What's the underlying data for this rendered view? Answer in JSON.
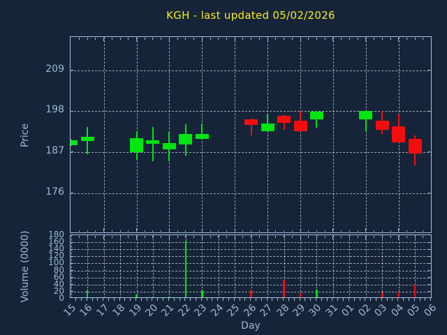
{
  "window": {
    "title": "KGH - last updated 05/02/2026"
  },
  "colors": {
    "background": "#16243a",
    "up": "#00e60f",
    "down": "#f50d0d",
    "frame": "#a6c2de",
    "text": "#9db9d5",
    "title": "#f6ec1e",
    "grid": "#c9ced8"
  },
  "chart_data": {
    "type": "candlestick",
    "title": "KGH - last updated 05/02/2026",
    "xlabel": "Day",
    "price_axis": {
      "label": "Price",
      "ticks": [
        176,
        187,
        198,
        209
      ],
      "ylim": [
        165,
        218
      ],
      "grid": true
    },
    "volume_axis": {
      "label": "Volume (0000)",
      "ticks": [
        0,
        20,
        40,
        60,
        80,
        100,
        120,
        140,
        160,
        180
      ],
      "ylim": [
        0,
        180
      ],
      "grid": true
    },
    "x_tick_labels": [
      "15",
      "16",
      "17",
      "18",
      "19",
      "20",
      "21",
      "22",
      "23",
      "24",
      "25",
      "26",
      "27",
      "28",
      "29",
      "30",
      "31",
      "01",
      "02",
      "03",
      "04",
      "05",
      "06"
    ],
    "price_grid_slots": [
      2,
      4,
      6,
      8,
      10,
      12,
      14,
      16,
      18,
      20,
      22
    ],
    "legend": "none",
    "candles": [
      {
        "day": "15",
        "slot": 0,
        "open": 188.8,
        "high": 190.3,
        "low": 188.7,
        "close": 190.2,
        "volume": 1,
        "dir": "up"
      },
      {
        "day": "16",
        "slot": 1,
        "open": 189.9,
        "high": 193.7,
        "low": 186.4,
        "close": 191.2,
        "volume": 26,
        "dir": "up"
      },
      {
        "day": "19",
        "slot": 4,
        "open": 187.0,
        "high": 192.7,
        "low": 184.9,
        "close": 190.8,
        "volume": 11,
        "dir": "up"
      },
      {
        "day": "20",
        "slot": 5,
        "open": 189.3,
        "high": 193.7,
        "low": 184.6,
        "close": 190.2,
        "volume": 6,
        "dir": "up"
      },
      {
        "day": "21",
        "slot": 6,
        "open": 187.7,
        "high": 192.4,
        "low": 184.6,
        "close": 189.4,
        "volume": 7,
        "dir": "up"
      },
      {
        "day": "22",
        "slot": 7,
        "open": 189.1,
        "high": 194.6,
        "low": 186.1,
        "close": 191.9,
        "volume": 165,
        "dir": "up"
      },
      {
        "day": "23",
        "slot": 8,
        "open": 190.5,
        "high": 194.7,
        "low": 190.4,
        "close": 191.9,
        "volume": 24,
        "dir": "up"
      },
      {
        "day": "26",
        "slot": 11,
        "open": 195.9,
        "high": 196.0,
        "low": 191.5,
        "close": 194.3,
        "volume": 24,
        "dir": "down"
      },
      {
        "day": "27",
        "slot": 12,
        "open": 192.7,
        "high": 197.3,
        "low": 192.6,
        "close": 194.7,
        "volume": 4,
        "dir": "up"
      },
      {
        "day": "28",
        "slot": 13,
        "open": 196.8,
        "high": 196.9,
        "low": 193.0,
        "close": 194.9,
        "volume": 54,
        "dir": "down"
      },
      {
        "day": "29",
        "slot": 14,
        "open": 195.4,
        "high": 198.0,
        "low": 192.6,
        "close": 192.7,
        "volume": 16,
        "dir": "down"
      },
      {
        "day": "30",
        "slot": 15,
        "open": 195.8,
        "high": 198.0,
        "low": 193.6,
        "close": 197.9,
        "volume": 25,
        "dir": "up"
      },
      {
        "day": "02",
        "slot": 18,
        "open": 195.8,
        "high": 198.2,
        "low": 192.7,
        "close": 198.1,
        "volume": 4,
        "dir": "up"
      },
      {
        "day": "03",
        "slot": 19,
        "open": 195.4,
        "high": 198.0,
        "low": 191.8,
        "close": 193.0,
        "volume": 17,
        "dir": "down"
      },
      {
        "day": "04",
        "slot": 20,
        "open": 194.0,
        "high": 197.1,
        "low": 189.6,
        "close": 189.7,
        "volume": 19,
        "dir": "down"
      },
      {
        "day": "05",
        "slot": 21,
        "open": 190.6,
        "high": 191.5,
        "low": 183.4,
        "close": 186.6,
        "volume": 40,
        "dir": "down"
      }
    ]
  }
}
